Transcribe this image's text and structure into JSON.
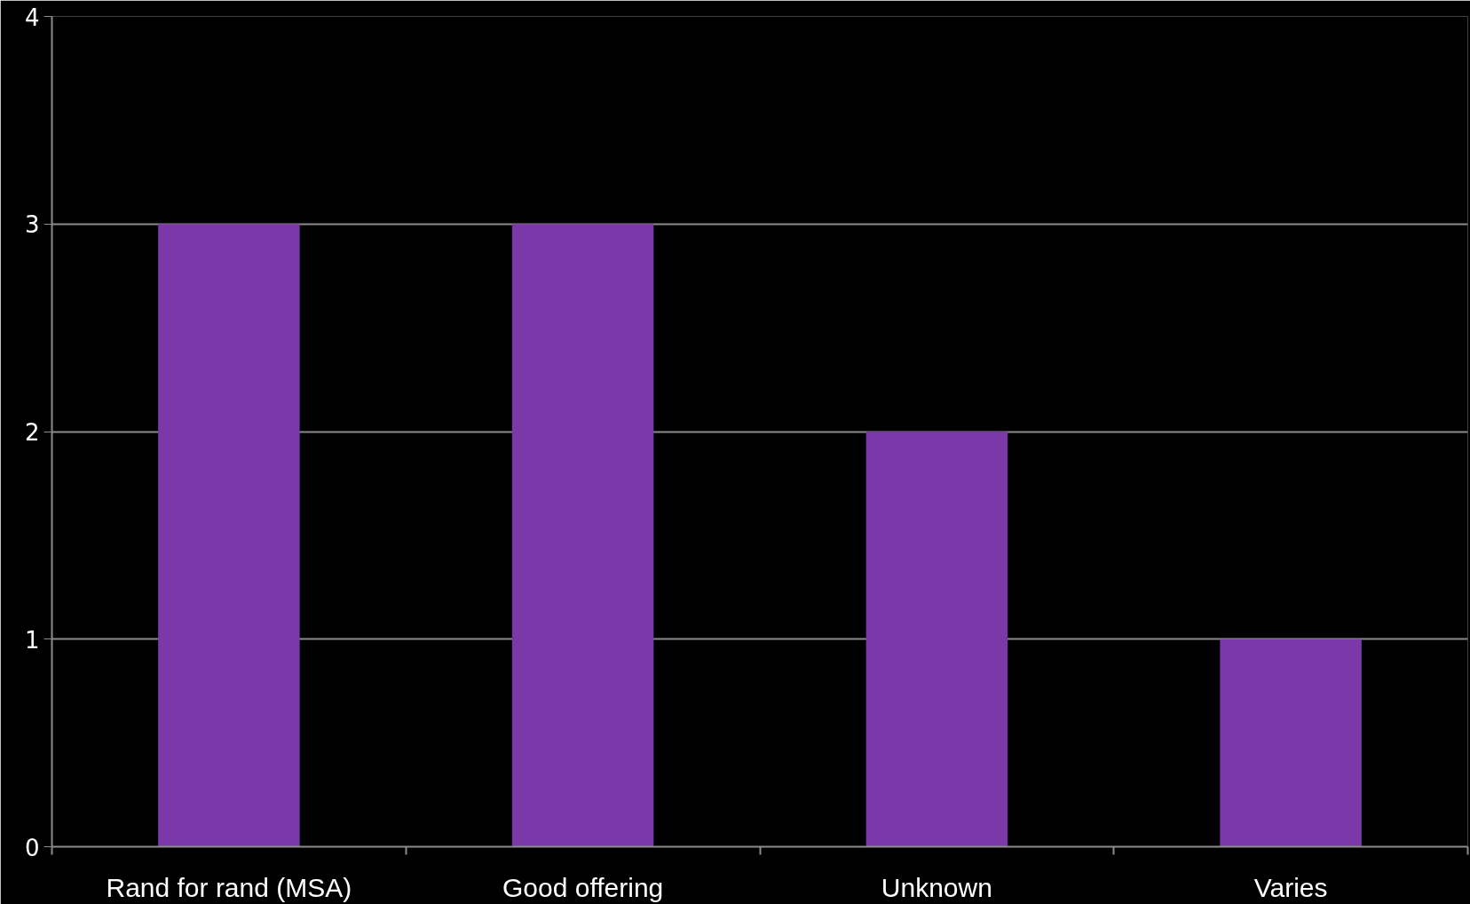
{
  "chart_data": {
    "type": "bar",
    "categories": [
      "Rand for rand (MSA)",
      "Good offering",
      "Unknown",
      "Varies"
    ],
    "values": [
      3,
      3,
      2,
      1
    ],
    "color": "#7b38a8",
    "ylim": [
      0,
      4
    ],
    "yticks": [
      0,
      1,
      2,
      3,
      4
    ],
    "grid": "y"
  }
}
